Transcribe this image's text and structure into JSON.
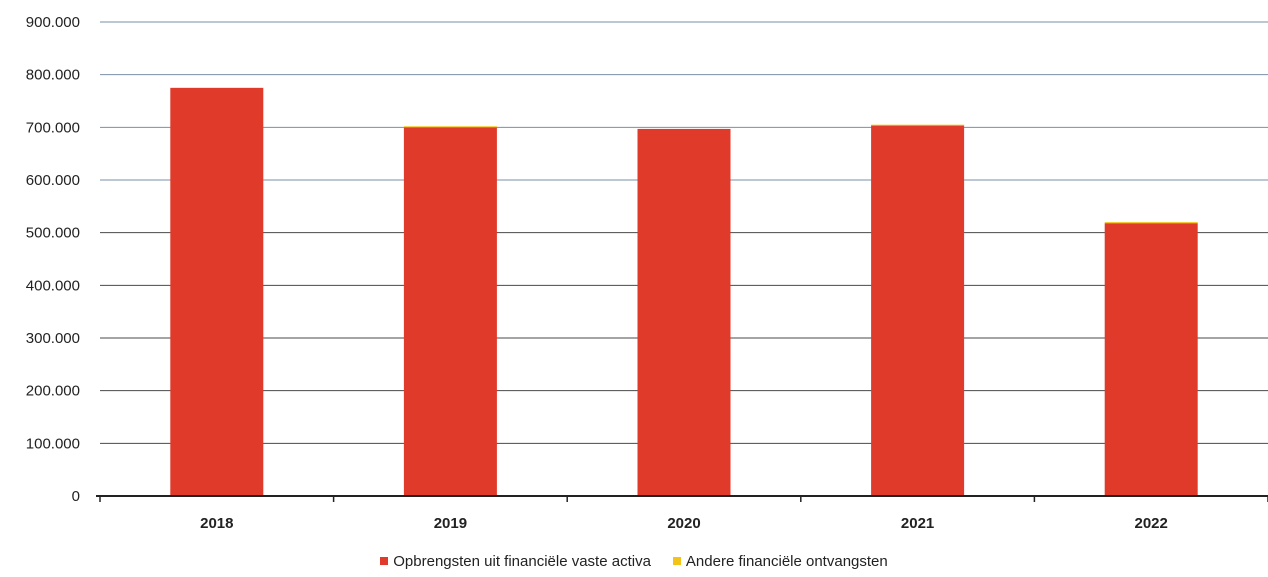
{
  "chart_data": {
    "type": "bar",
    "stacked": true,
    "categories": [
      "2018",
      "2019",
      "2020",
      "2021",
      "2022"
    ],
    "series": [
      {
        "name": "Opbrengsten uit financiële vaste activa",
        "color": "#e03a2b",
        "values": [
          775000,
          700000,
          697000,
          704000,
          518000
        ]
      },
      {
        "name": "Andere financiële ontvangsten",
        "color": "#f2c318",
        "values": [
          0,
          2000,
          0,
          1000,
          2000
        ]
      }
    ],
    "y_ticks": [
      "0",
      "100.000",
      "200.000",
      "300.000",
      "400.000",
      "500.000",
      "600.000",
      "700.000",
      "800.000",
      "900.000"
    ],
    "ylim": [
      0,
      900000
    ],
    "grid": true,
    "legend_position": "bottom"
  }
}
